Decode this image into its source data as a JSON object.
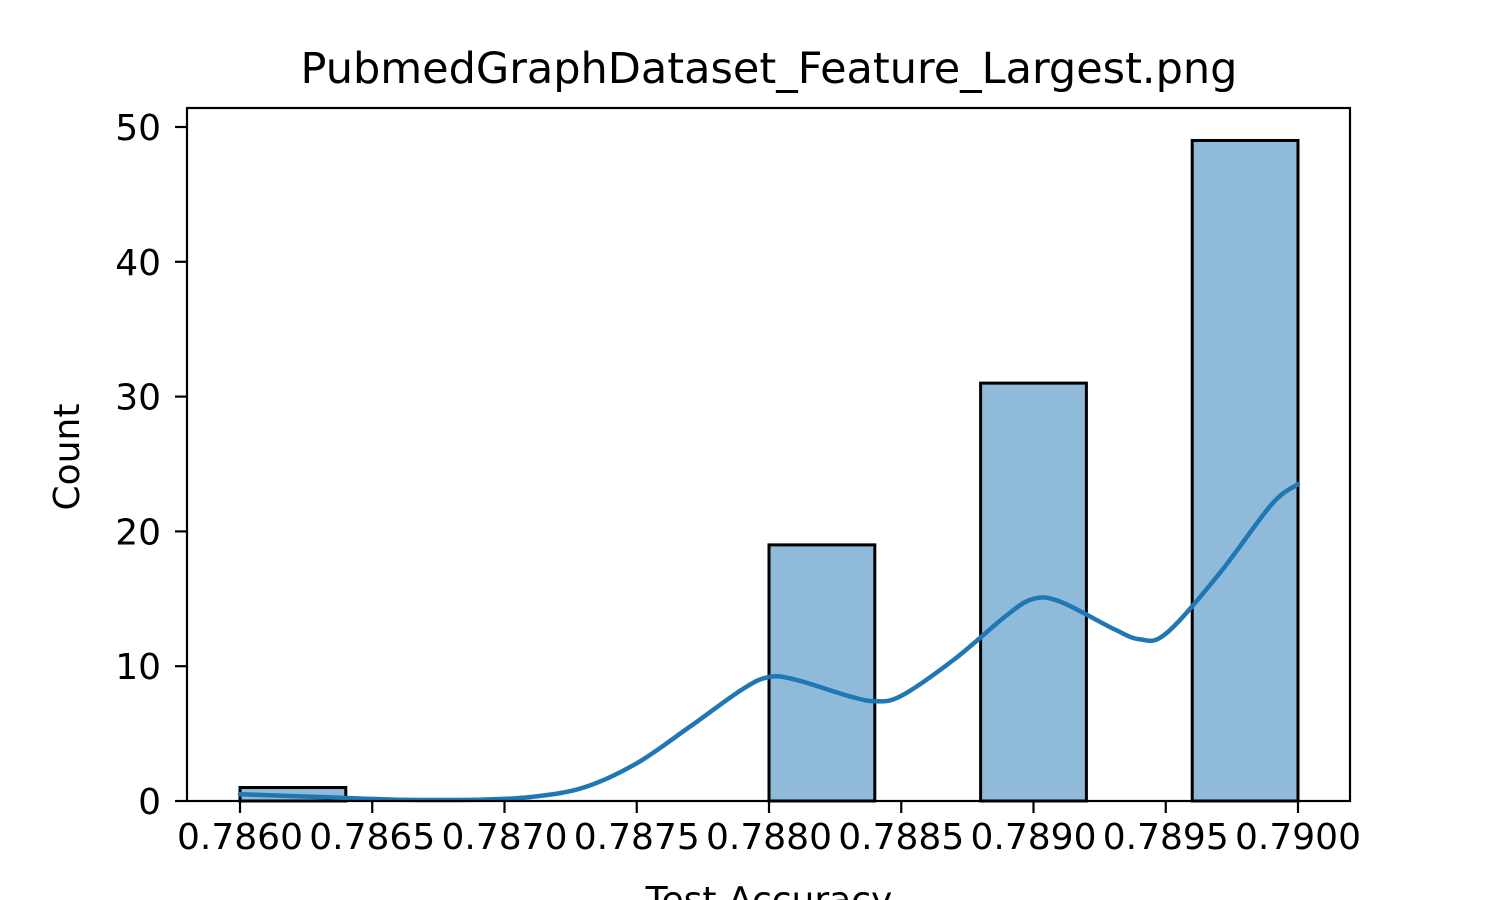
{
  "chart_data": {
    "type": "bar",
    "subtype": "histogram-with-kde",
    "title": "PubmedGraphDataset_Feature_Largest.png",
    "xlabel": "Test Accuracy",
    "ylabel": "Count",
    "xlim": [
      0.7856,
      0.7902
    ],
    "ylim": [
      0,
      51.5
    ],
    "bins": [
      {
        "x_start": 0.786,
        "x_end": 0.7864,
        "count": 1
      },
      {
        "x_start": 0.788,
        "x_end": 0.7884,
        "count": 19
      },
      {
        "x_start": 0.7888,
        "x_end": 0.7892,
        "count": 31
      },
      {
        "x_start": 0.7896,
        "x_end": 0.79,
        "count": 49
      }
    ],
    "kde": {
      "x": [
        0.786,
        0.7863,
        0.7866,
        0.7869,
        0.7871,
        0.7873,
        0.7875,
        0.7877,
        0.7879,
        0.788,
        0.7881,
        0.7883,
        0.7884,
        0.7885,
        0.7887,
        0.7889,
        0.789,
        0.7891,
        0.7893,
        0.7894,
        0.7895,
        0.7897,
        0.7899,
        0.79
      ],
      "y": [
        0.5,
        0.3,
        0.1,
        0.1,
        0.3,
        1.0,
        2.8,
        5.5,
        8.3,
        9.2,
        9.0,
        7.8,
        7.4,
        7.8,
        10.5,
        13.8,
        15.0,
        14.8,
        12.8,
        12.0,
        12.4,
        16.8,
        22.0,
        23.5
      ]
    },
    "x_ticks": [
      "0.7860",
      "0.7865",
      "0.7870",
      "0.7875",
      "0.7880",
      "0.7885",
      "0.7890",
      "0.7895",
      "0.7900"
    ],
    "y_ticks": [
      "0",
      "10",
      "20",
      "30",
      "40",
      "50"
    ],
    "colors": {
      "bar_fill": "#8fbad9",
      "bar_edge": "#000000",
      "kde_line": "#1f77b4"
    },
    "grid": false,
    "legend": "none"
  }
}
